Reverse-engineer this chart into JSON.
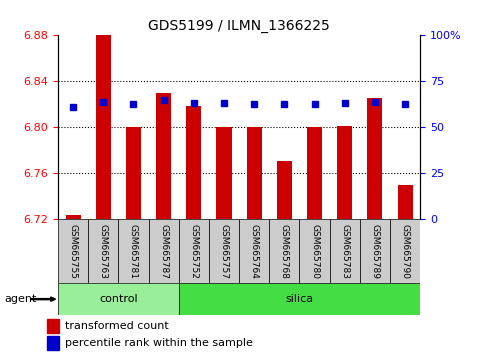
{
  "title": "GDS5199 / ILMN_1366225",
  "samples": [
    "GSM665755",
    "GSM665763",
    "GSM665781",
    "GSM665787",
    "GSM665752",
    "GSM665757",
    "GSM665764",
    "GSM665768",
    "GSM665780",
    "GSM665783",
    "GSM665789",
    "GSM665790"
  ],
  "bar_values": [
    6.724,
    6.882,
    6.8,
    6.83,
    6.819,
    6.8,
    6.8,
    6.771,
    6.8,
    6.801,
    6.826,
    6.75
  ],
  "percentile_values": [
    6.818,
    6.822,
    6.82,
    6.824,
    6.821,
    6.821,
    6.82,
    6.82,
    6.82,
    6.821,
    6.822,
    6.82
  ],
  "y_min": 6.72,
  "y_max": 6.88,
  "y_ticks": [
    6.72,
    6.76,
    6.8,
    6.84,
    6.88
  ],
  "y2_ticks": [
    0,
    25,
    50,
    75,
    100
  ],
  "y2_labels": [
    "0",
    "25",
    "50",
    "75",
    "100%"
  ],
  "bar_color": "#cc0000",
  "percentile_color": "#0000cc",
  "bar_bottom": 6.72,
  "control_count": 4,
  "control_label": "control",
  "silica_label": "silica",
  "agent_label": "agent",
  "legend_bar_label": "transformed count",
  "legend_pct_label": "percentile rank within the sample",
  "control_bg": "#99ee99",
  "silica_bg": "#44dd44",
  "tick_bg": "#cccccc",
  "fig_width": 4.83,
  "fig_height": 3.54
}
